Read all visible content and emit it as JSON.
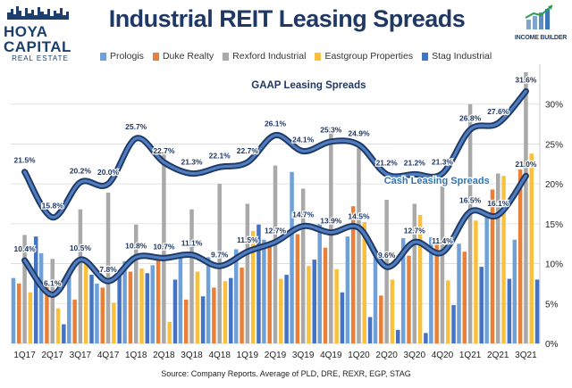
{
  "logo": {
    "line1": "HOYA CAPITAL",
    "line2": "REAL ESTATE"
  },
  "brand": {
    "text": "INCOME BUILDER"
  },
  "source": "Source: Company Reports. Average of PLD, DRE, REXR, EGP, STAG",
  "chart_data": {
    "type": "bar",
    "title": "Industrial REIT Leasing Spreads",
    "categories": [
      "1Q17",
      "2Q17",
      "3Q17",
      "4Q17",
      "1Q18",
      "2Q18",
      "3Q18",
      "4Q18",
      "1Q19",
      "2Q19",
      "3Q19",
      "4Q19",
      "1Q20",
      "2Q20",
      "3Q20",
      "4Q20",
      "1Q21",
      "2Q21",
      "3Q21"
    ],
    "x_tick_labels": [
      "1Q17",
      "2Q17",
      "3Q17",
      "4Q17",
      "1Q18",
      "2Q18",
      "3Q18",
      "4Q18",
      "1Q19",
      "2Q19",
      "3Q19",
      "4Q19",
      "1Q20",
      "2Q20",
      "3Q20",
      "4Q20",
      "1Q21",
      "2Q21",
      "3Q21"
    ],
    "ylim": [
      0,
      35
    ],
    "y_ticks": [
      0,
      5,
      10,
      15,
      20,
      25,
      30
    ],
    "y_tick_labels": [
      "0%",
      "5%",
      "10%",
      "15%",
      "20%",
      "25%",
      "30%"
    ],
    "grid": true,
    "legend_position": "top",
    "series": [
      {
        "name": "Prologis",
        "color": "#6fa1d8",
        "values": [
          8.2,
          11.3,
          9.0,
          7.5,
          10.3,
          9.8,
          11.3,
          10.8,
          11.8,
          13.0,
          21.5,
          15.0,
          13.4,
          10.8,
          13.2,
          13.3,
          12.5,
          16.3,
          13.0
        ]
      },
      {
        "name": "Duke Realty",
        "color": "#e8803a",
        "values": [
          7.5,
          7.1,
          5.5,
          7.0,
          9.0,
          10.4,
          5.5,
          7.0,
          9.5,
          12.2,
          13.7,
          12.0,
          17.2,
          6.0,
          11.0,
          13.0,
          11.5,
          19.3,
          21.8
        ]
      },
      {
        "name": "Rexford Industrial",
        "color": "#a9a9a9",
        "values": [
          13.6,
          10.6,
          16.8,
          18.9,
          14.9,
          23.8,
          16.8,
          20.0,
          17.5,
          22.3,
          19.4,
          27.1,
          24.5,
          18.0,
          17.5,
          19.7,
          30.0,
          21.3,
          34.0
        ]
      },
      {
        "name": "Eastgroup Properties",
        "color": "#f9c03e",
        "values": [
          6.4,
          4.4,
          10.2,
          5.1,
          9.4,
          2.7,
          9.0,
          7.8,
          14.1,
          8.1,
          9.7,
          9.3,
          15.2,
          8.0,
          16.1,
          7.9,
          15.4,
          21.0,
          23.8
        ]
      },
      {
        "name": "Stag Industrial",
        "color": "#4472c4",
        "values": [
          13.4,
          2.4,
          8.6,
          8.7,
          8.8,
          8.0,
          5.9,
          8.2,
          14.9,
          8.6,
          10.5,
          6.4,
          3.3,
          1.7,
          1.3,
          4.8,
          9.6,
          8.1,
          8.0
        ]
      }
    ],
    "lines": [
      {
        "name": "GAAP Leasing Spreads",
        "label": "GAAP Leasing Spreads",
        "values": [
          21.5,
          15.8,
          20.2,
          20.0,
          25.7,
          22.7,
          21.3,
          22.1,
          22.7,
          26.1,
          24.1,
          25.3,
          24.9,
          21.2,
          21.2,
          21.3,
          26.8,
          27.6,
          31.6
        ],
        "data_labels": [
          "21.5%",
          "15.8%",
          "20.2%",
          "20.0%",
          "25.7%",
          "22.7%",
          "21.3%",
          "22.1%",
          "22.7%",
          "26.1%",
          "24.1%",
          "25.3%",
          "24.9%",
          "21.2%",
          "21.2%",
          "21.3%",
          "26.8%",
          "27.6%",
          "31.6%"
        ]
      },
      {
        "name": "Cash Leasing Spreads",
        "label": "Cash Leasing Spreads",
        "values": [
          10.4,
          6.1,
          10.5,
          7.8,
          10.8,
          10.7,
          11.1,
          9.7,
          11.5,
          12.7,
          14.7,
          13.9,
          14.5,
          9.6,
          12.7,
          11.4,
          16.5,
          16.1,
          21.0
        ],
        "data_labels": [
          "10.4%",
          "6.1%",
          "10.5%",
          "7.8%",
          "10.8%",
          "10.7%",
          "11.1%",
          "9.7%",
          "11.5%",
          "12.7%",
          "14.7%",
          "13.9%",
          "14.5%",
          "9.6%",
          "12.7%",
          "11.4%",
          "16.5%",
          "16.1%",
          "21.0%"
        ]
      }
    ]
  }
}
